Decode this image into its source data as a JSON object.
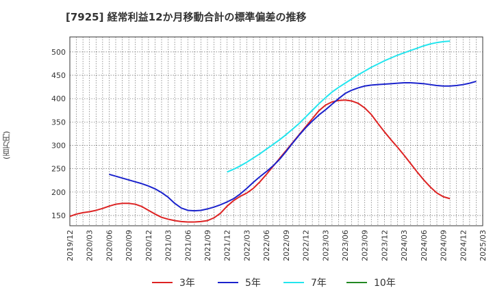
{
  "chart_data": {
    "type": "line",
    "title": "[7925]  経常利益12か月移動合計の標準偏差の推移",
    "ylabel": "(百万円)",
    "xlabel": "",
    "x_ticks": [
      "2019/12",
      "2020/03",
      "2020/06",
      "2020/09",
      "2020/12",
      "2021/03",
      "2021/06",
      "2021/09",
      "2021/12",
      "2022/03",
      "2022/06",
      "2022/09",
      "2022/12",
      "2023/03",
      "2023/06",
      "2023/09",
      "2023/12",
      "2024/03",
      "2024/06",
      "2024/09",
      "2024/12",
      "2025/03"
    ],
    "y_ticks": [
      150,
      200,
      250,
      300,
      350,
      400,
      450,
      500
    ],
    "ylim": [
      128,
      532
    ],
    "grid": true,
    "legend_position": "bottom",
    "series": [
      {
        "name": "3年",
        "color": "#dd2222",
        "start_index": 0,
        "values": [
          148,
          153,
          156,
          158,
          161,
          165,
          170,
          174,
          176,
          176,
          174,
          169,
          161,
          153,
          146,
          142,
          139,
          137,
          136,
          136,
          137,
          139,
          145,
          155,
          170,
          182,
          191,
          198,
          208,
          222,
          238,
          255,
          272,
          289,
          306,
          323,
          340,
          357,
          374,
          386,
          393,
          396,
          397,
          395,
          390,
          380,
          366,
          347,
          329,
          312,
          296,
          279,
          261,
          243,
          226,
          211,
          198,
          190,
          186
        ]
      },
      {
        "name": "5年",
        "color": "#1a22cc",
        "start_index": 6,
        "values": [
          238,
          234,
          230,
          226,
          222,
          218,
          213,
          207,
          199,
          189,
          176,
          166,
          161,
          160,
          161,
          164,
          168,
          173,
          179,
          186,
          196,
          208,
          221,
          233,
          244,
          256,
          270,
          287,
          305,
          322,
          338,
          352,
          365,
          376,
          388,
          400,
          411,
          418,
          423,
          427,
          429,
          430,
          431,
          432,
          433,
          434,
          434,
          433,
          432,
          430,
          428,
          427,
          427,
          428,
          430,
          433,
          437
        ]
      },
      {
        "name": "7年",
        "color": "#22e5ee",
        "start_index": 24,
        "values": [
          243,
          249,
          256,
          264,
          273,
          282,
          292,
          302,
          312,
          323,
          335,
          347,
          361,
          375,
          389,
          402,
          414,
          424,
          433,
          442,
          451,
          459,
          467,
          474,
          481,
          487,
          493,
          498,
          503,
          508,
          513,
          517,
          520,
          522,
          523
        ]
      },
      {
        "name": "10年",
        "color": "#228822",
        "start_index": 0,
        "values": []
      }
    ]
  }
}
